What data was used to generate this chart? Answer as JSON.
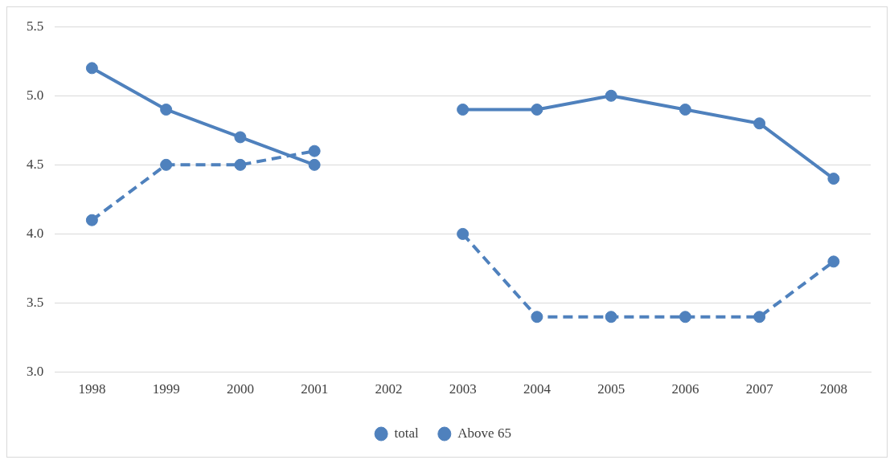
{
  "chart_data": {
    "type": "line",
    "categories": [
      "1998",
      "1999",
      "2000",
      "2001",
      "2002",
      "2003",
      "2004",
      "2005",
      "2006",
      "2007",
      "2008"
    ],
    "series": [
      {
        "name": "total",
        "color": "#4f81bd",
        "line_style": "solid",
        "values": [
          5.2,
          4.9,
          4.7,
          4.5,
          null,
          4.9,
          4.9,
          5.0,
          4.9,
          4.8,
          4.4
        ]
      },
      {
        "name": "Above 65",
        "color": "#4f81bd",
        "line_style": "dashed",
        "values": [
          4.1,
          4.5,
          4.5,
          4.6,
          null,
          4.0,
          3.4,
          3.4,
          3.4,
          3.4,
          3.8
        ]
      }
    ],
    "ylim": [
      3,
      5.5
    ],
    "yticks": [
      {
        "value": 3,
        "label": "3.0"
      },
      {
        "value": 3.5,
        "label": "3.5"
      },
      {
        "value": 4,
        "label": "4.0"
      },
      {
        "value": 4.5,
        "label": "4.5"
      },
      {
        "value": 5,
        "label": "5.0"
      },
      {
        "value": 5.5,
        "label": "5.5"
      }
    ],
    "grid": "y",
    "legend": "bottom",
    "marker": "circle"
  }
}
